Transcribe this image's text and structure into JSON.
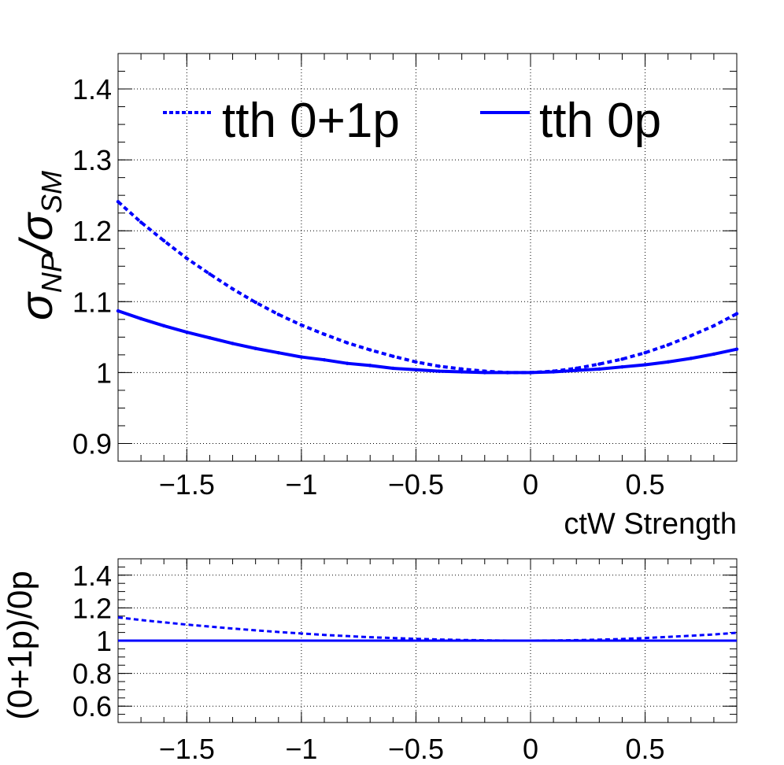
{
  "chart_data": [
    {
      "type": "line",
      "xlabel": "ctW Strength",
      "ylabel_main": "σ",
      "ylabel_sub1": "NP",
      "ylabel_sep": "/σ",
      "ylabel_sub2": "SM",
      "xlim": [
        -1.8,
        0.9
      ],
      "ylim": [
        0.875,
        1.45
      ],
      "x_ticks": [
        -1.5,
        -1,
        -0.5,
        0,
        0.5
      ],
      "x_tick_labels": [
        "−1.5",
        "−1",
        "−0.5",
        "0",
        "0.5"
      ],
      "y_ticks": [
        0.9,
        1.0,
        1.1,
        1.2,
        1.3,
        1.4
      ],
      "y_tick_labels": [
        "0.9",
        "1",
        "1.1",
        "1.2",
        "1.3",
        "1.4"
      ],
      "grid": true,
      "legend_position": "top",
      "series": [
        {
          "name": "tth 0+1p",
          "style": "dotted",
          "color": "#0000ff",
          "x": [
            -1.8,
            -1.7,
            -1.6,
            -1.5,
            -1.4,
            -1.3,
            -1.2,
            -1.1,
            -1.0,
            -0.9,
            -0.8,
            -0.7,
            -0.6,
            -0.5,
            -0.4,
            -0.3,
            -0.2,
            -0.1,
            0.0,
            0.1,
            0.2,
            0.3,
            0.4,
            0.5,
            0.6,
            0.7,
            0.8,
            0.9
          ],
          "y": [
            1.241,
            1.212,
            1.186,
            1.161,
            1.139,
            1.118,
            1.099,
            1.082,
            1.067,
            1.054,
            1.042,
            1.032,
            1.023,
            1.015,
            1.009,
            1.005,
            1.002,
            1.0,
            1.0,
            1.002,
            1.006,
            1.012,
            1.019,
            1.028,
            1.039,
            1.052,
            1.066,
            1.083
          ]
        },
        {
          "name": "tth 0p",
          "style": "solid",
          "color": "#0000ff",
          "x": [
            -1.8,
            -1.7,
            -1.6,
            -1.5,
            -1.4,
            -1.3,
            -1.2,
            -1.1,
            -1.0,
            -0.9,
            -0.8,
            -0.7,
            -0.6,
            -0.5,
            -0.4,
            -0.3,
            -0.2,
            -0.1,
            0.0,
            0.1,
            0.2,
            0.3,
            0.4,
            0.5,
            0.6,
            0.7,
            0.8,
            0.9
          ],
          "y": [
            1.087,
            1.076,
            1.066,
            1.057,
            1.049,
            1.041,
            1.034,
            1.028,
            1.022,
            1.018,
            1.013,
            1.01,
            1.006,
            1.004,
            1.002,
            1.001,
            1.0,
            1.0,
            1.0,
            1.001,
            1.003,
            1.005,
            1.008,
            1.011,
            1.015,
            1.02,
            1.026,
            1.033
          ]
        }
      ]
    },
    {
      "type": "line",
      "ylabel": "(0+1p)/0p",
      "xlim": [
        -1.8,
        0.9
      ],
      "ylim": [
        0.5,
        1.5
      ],
      "x_ticks": [
        -1.5,
        -1,
        -0.5,
        0,
        0.5
      ],
      "x_tick_labels": [
        "−1.5",
        "−1",
        "−0.5",
        "0",
        "0.5"
      ],
      "y_ticks": [
        0.6,
        0.8,
        1.0,
        1.2,
        1.4
      ],
      "y_tick_labels": [
        "0.6",
        "0.8",
        "1",
        "1.2",
        "1.4"
      ],
      "grid": true,
      "series": [
        {
          "style": "dotted",
          "color": "#0000ff",
          "x": [
            -1.8,
            -1.7,
            -1.6,
            -1.5,
            -1.4,
            -1.3,
            -1.2,
            -1.1,
            -1.0,
            -0.9,
            -0.8,
            -0.7,
            -0.6,
            -0.5,
            -0.4,
            -0.3,
            -0.2,
            -0.1,
            0.0,
            0.1,
            0.2,
            0.3,
            0.4,
            0.5,
            0.6,
            0.7,
            0.8,
            0.9
          ],
          "y": [
            1.142,
            1.126,
            1.112,
            1.098,
            1.086,
            1.074,
            1.063,
            1.053,
            1.044,
            1.035,
            1.028,
            1.021,
            1.016,
            1.011,
            1.007,
            1.004,
            1.002,
            1.0,
            1.0,
            1.001,
            1.003,
            1.006,
            1.01,
            1.016,
            1.023,
            1.03,
            1.038,
            1.048
          ]
        },
        {
          "style": "solid",
          "color": "#0000ff",
          "x": [
            -1.8,
            0.9
          ],
          "y": [
            1.0,
            1.0
          ]
        }
      ]
    }
  ]
}
